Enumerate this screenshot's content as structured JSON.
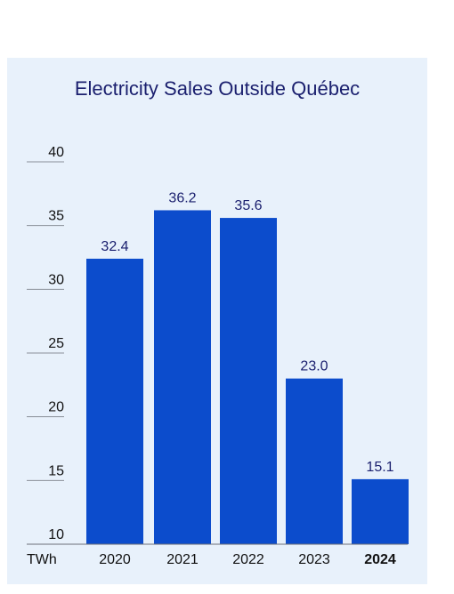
{
  "chart_data": {
    "type": "bar",
    "title": "Electricity Sales Outside Québec",
    "unit_label": "TWh",
    "categories": [
      "2020",
      "2021",
      "2022",
      "2023",
      "2024"
    ],
    "values": [
      32.4,
      36.2,
      35.6,
      23.0,
      15.1
    ],
    "value_labels": [
      "32.4",
      "36.2",
      "35.6",
      "23.0",
      "15.1"
    ],
    "highlight_category": "2024",
    "yticks": [
      "10",
      "15",
      "20",
      "25",
      "30",
      "35",
      "40"
    ],
    "ylim": [
      10,
      40
    ],
    "grid": false,
    "colors": {
      "bar": "#0c4ccc",
      "title": "#1a1f6e",
      "value_label": "#1a1f6e",
      "axis_text": "#111111",
      "panel": "#e8f1fb"
    }
  }
}
